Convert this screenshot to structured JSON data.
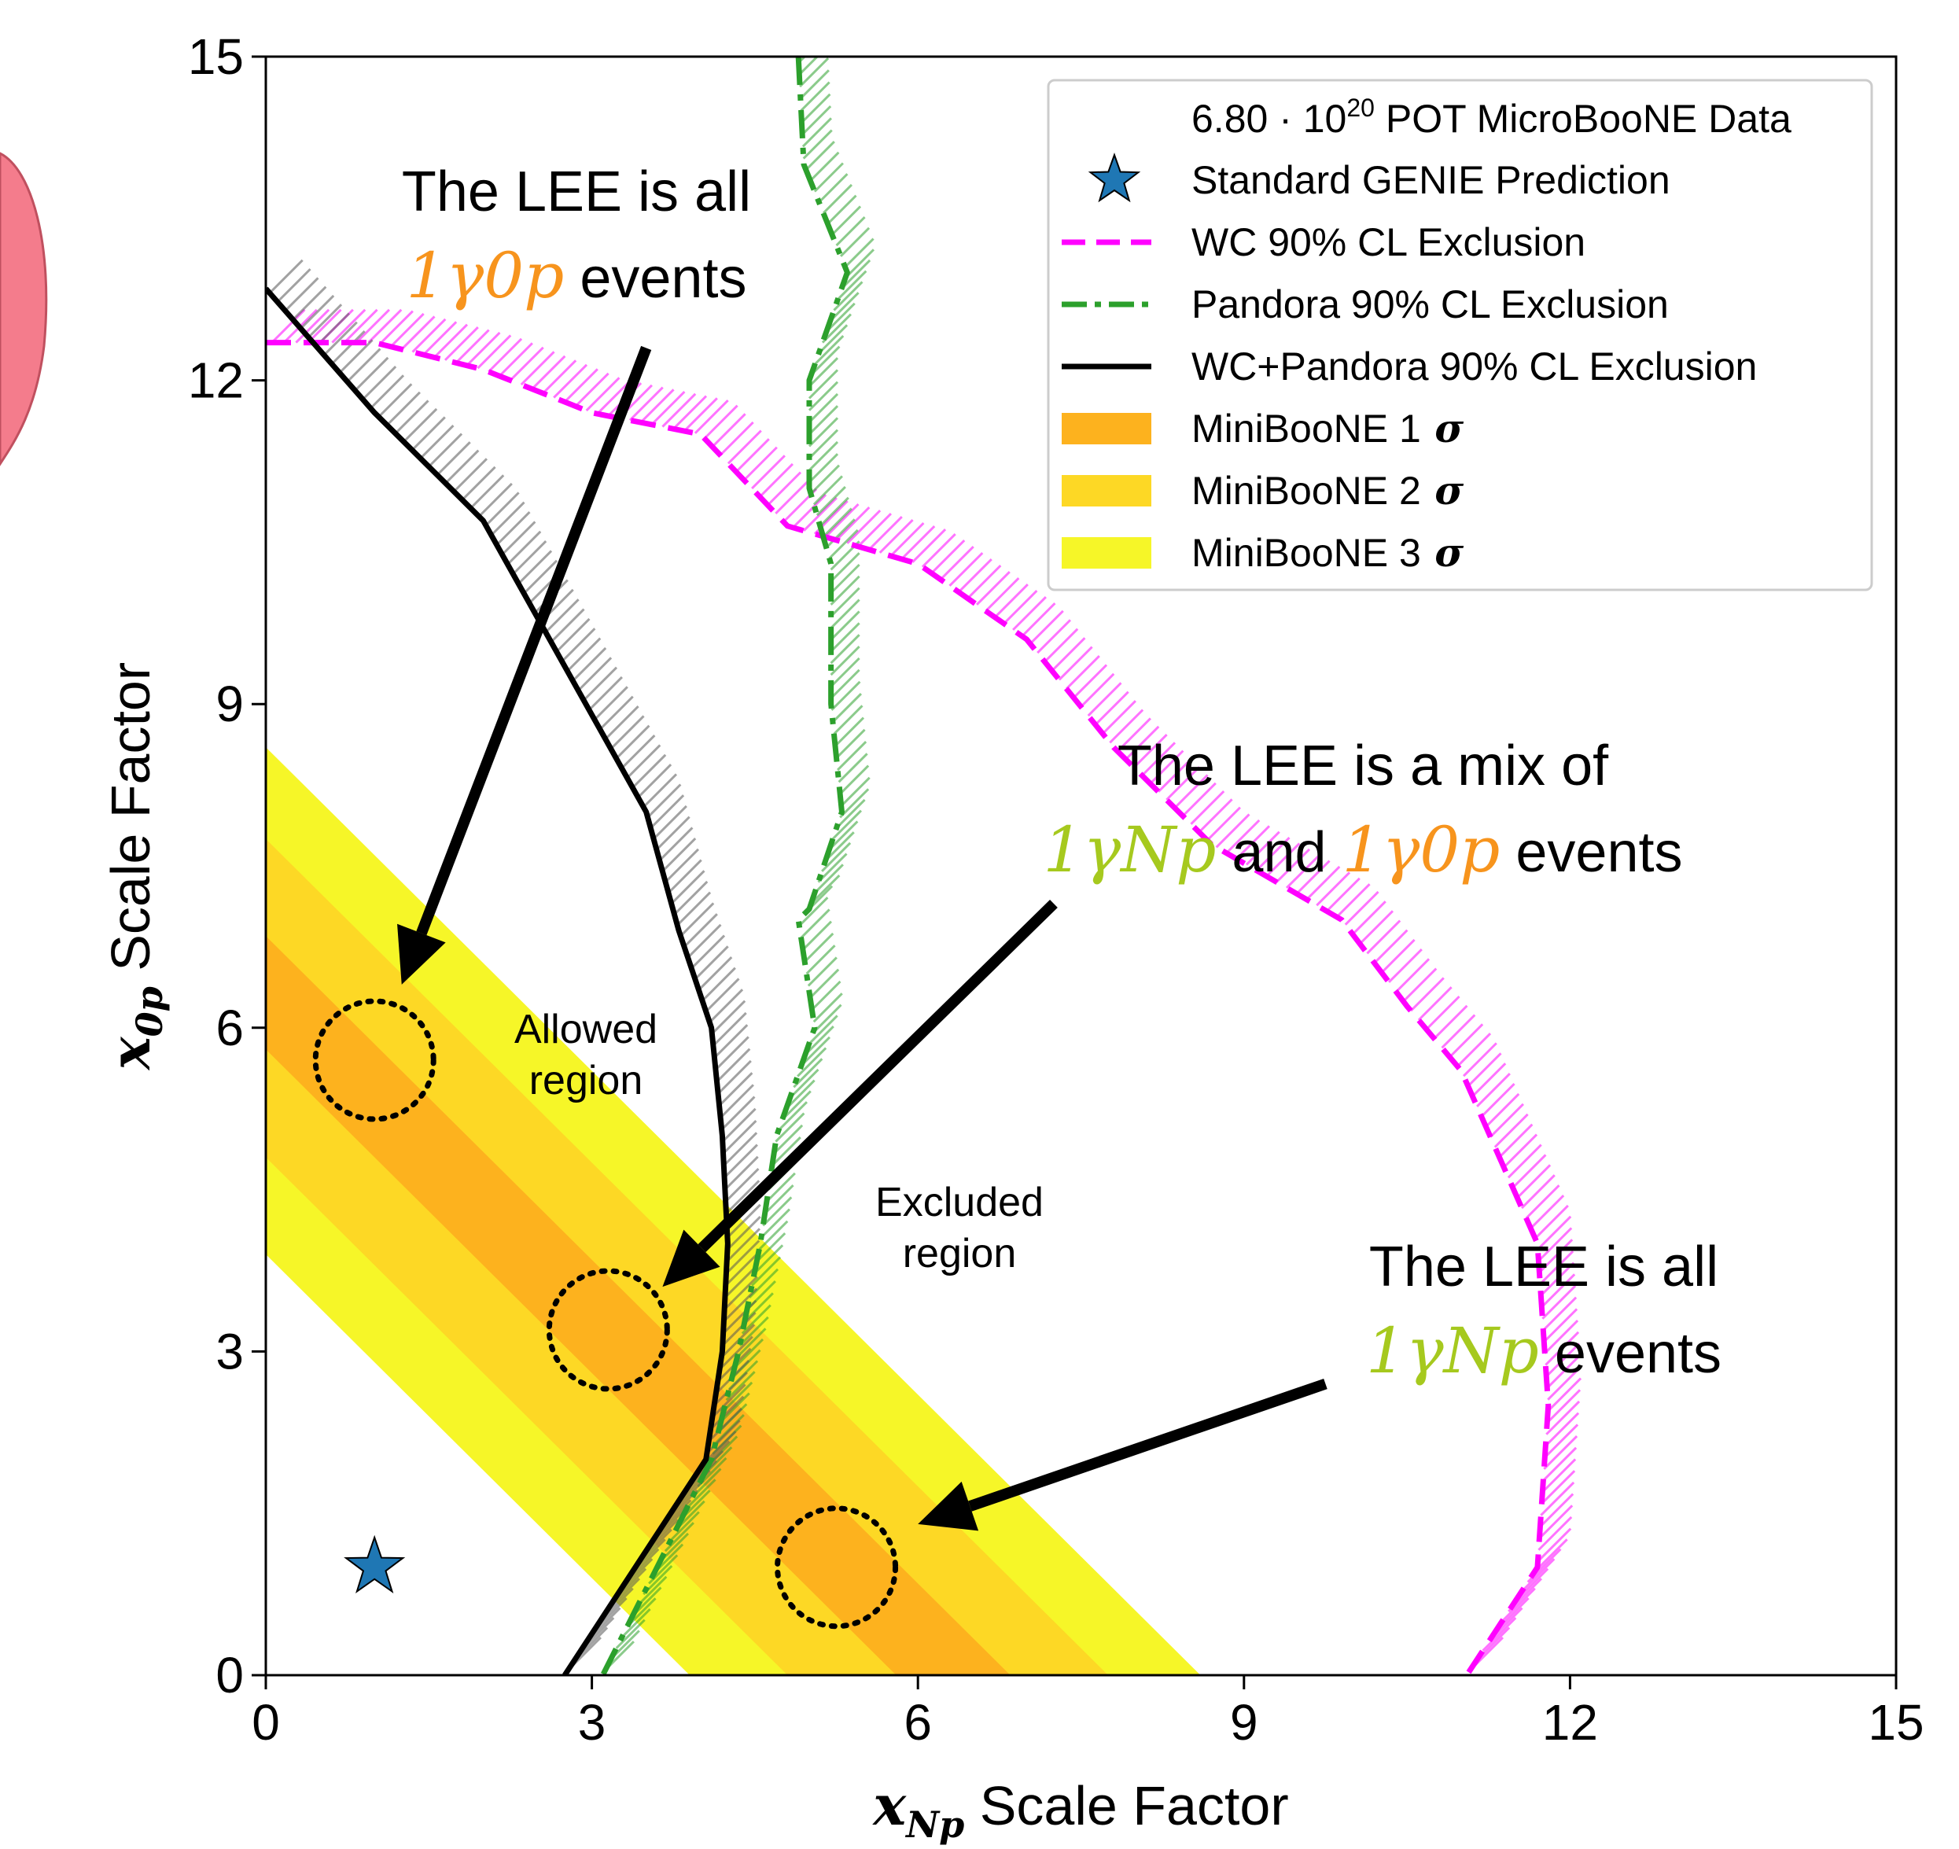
{
  "colors": {
    "wc": "#ff00ff",
    "pandora": "#2ca02c",
    "combined": "#000000",
    "sigma1": "#fdb21e",
    "sigma2": "#fdd825",
    "sigma3": "#f6f628",
    "genie_star": "#1f77b4",
    "orange_text": "#f7941d",
    "green_text": "#a6c91e",
    "side_blob": "#f47c8c"
  },
  "chart_data": {
    "type": "line",
    "xlabel": {
      "var": "x",
      "sub": "Np",
      "text": "Scale Factor"
    },
    "ylabel": {
      "var": "x",
      "sub": "0p",
      "text": "Scale Factor"
    },
    "xlim": [
      0,
      15
    ],
    "ylim": [
      0,
      15
    ],
    "xticks": [
      0,
      3,
      6,
      9,
      12,
      15
    ],
    "yticks": [
      0,
      3,
      6,
      9,
      12,
      15
    ],
    "grid": false,
    "legend_position": "top-right",
    "legend": {
      "data_entry": {
        "prefix": "6.80 · 10",
        "sup": "20",
        "suffix": " POT MicroBooNE Data"
      },
      "items": [
        {
          "label": "Standard GENIE Prediction",
          "marker": "star"
        },
        {
          "label": "WC 90% CL Exclusion",
          "style": "dashed"
        },
        {
          "label": "Pandora 90% CL Exclusion",
          "style": "dashdot"
        },
        {
          "label": "WC+Pandora 90% CL Exclusion",
          "style": "solid"
        },
        {
          "label": "MiniBooNE 1",
          "sym": "σ",
          "patch": "sigma1"
        },
        {
          "label": "MiniBooNE 2",
          "sym": "σ",
          "patch": "sigma2"
        },
        {
          "label": "MiniBooNE 3",
          "sym": "σ",
          "patch": "sigma3"
        }
      ]
    },
    "genie_prediction": {
      "x": 1.0,
      "y": 1.0
    },
    "miniboone_bands": {
      "sigma3": {
        "low": 3.9,
        "high": 8.6
      },
      "sigma2": {
        "low": 4.8,
        "high": 7.75
      },
      "sigma1": {
        "low": 5.8,
        "high": 6.85
      }
    },
    "series": [
      {
        "name": "WC 90% CL Exclusion",
        "points": [
          [
            0,
            12.35
          ],
          [
            1.0,
            12.35
          ],
          [
            2.0,
            12.1
          ],
          [
            3.0,
            11.7
          ],
          [
            4.0,
            11.5
          ],
          [
            4.8,
            10.65
          ],
          [
            6.0,
            10.3
          ],
          [
            7.0,
            9.6
          ],
          [
            7.8,
            8.6
          ],
          [
            8.7,
            7.7
          ],
          [
            9.9,
            7.0
          ],
          [
            10.5,
            6.2
          ],
          [
            11.0,
            5.6
          ],
          [
            11.7,
            4.0
          ],
          [
            11.8,
            2.5
          ],
          [
            11.7,
            1.0
          ],
          [
            11.05,
            0
          ]
        ]
      },
      {
        "name": "Pandora 90% CL Exclusion",
        "points": [
          [
            4.9,
            15.0
          ],
          [
            4.95,
            14.0
          ],
          [
            5.35,
            13.0
          ],
          [
            5.0,
            12.0
          ],
          [
            5.0,
            11.0
          ],
          [
            5.2,
            10.3
          ],
          [
            5.2,
            9.0
          ],
          [
            5.3,
            8.0
          ],
          [
            5.0,
            7.1
          ],
          [
            4.9,
            7.0
          ],
          [
            5.05,
            6.0
          ],
          [
            4.7,
            5.0
          ],
          [
            4.55,
            4.0
          ],
          [
            4.35,
            3.0
          ],
          [
            4.1,
            2.0
          ],
          [
            3.6,
            1.0
          ],
          [
            3.1,
            0
          ]
        ]
      },
      {
        "name": "WC+Pandora 90% CL Exclusion",
        "points": [
          [
            0,
            12.85
          ],
          [
            1.0,
            11.7
          ],
          [
            2.0,
            10.7
          ],
          [
            3.0,
            8.9
          ],
          [
            3.5,
            8.0
          ],
          [
            3.8,
            6.9
          ],
          [
            4.1,
            6.0
          ],
          [
            4.2,
            5.0
          ],
          [
            4.25,
            4.0
          ],
          [
            4.2,
            3.0
          ],
          [
            4.05,
            2.0
          ],
          [
            3.4,
            1.0
          ],
          [
            2.75,
            0
          ]
        ]
      }
    ],
    "annotations": {
      "allowed": [
        "Allowed",
        "region"
      ],
      "excluded": [
        "Excluded",
        "region"
      ],
      "all_0p": {
        "line1": "The LEE is all",
        "sym": "1γ0p",
        "tail": " events"
      },
      "mix": {
        "line1": "The LEE is a mix of",
        "sym1": "1γNp",
        "mid": " and ",
        "sym2": "1γ0p",
        "tail": " events"
      },
      "all_np": {
        "line1": "The LEE is all",
        "sym": "1γNp",
        "tail": " events"
      }
    },
    "highlight_circles": [
      [
        1.0,
        5.7
      ],
      [
        3.15,
        3.2
      ],
      [
        5.25,
        1.0
      ]
    ],
    "arrows": [
      {
        "from": [
          3.5,
          12.3
        ],
        "to": [
          1.25,
          6.4
        ]
      },
      {
        "from": [
          7.25,
          7.15
        ],
        "to": [
          3.65,
          3.6
        ]
      },
      {
        "from": [
          9.75,
          2.7
        ],
        "to": [
          6.0,
          1.4
        ]
      }
    ]
  }
}
